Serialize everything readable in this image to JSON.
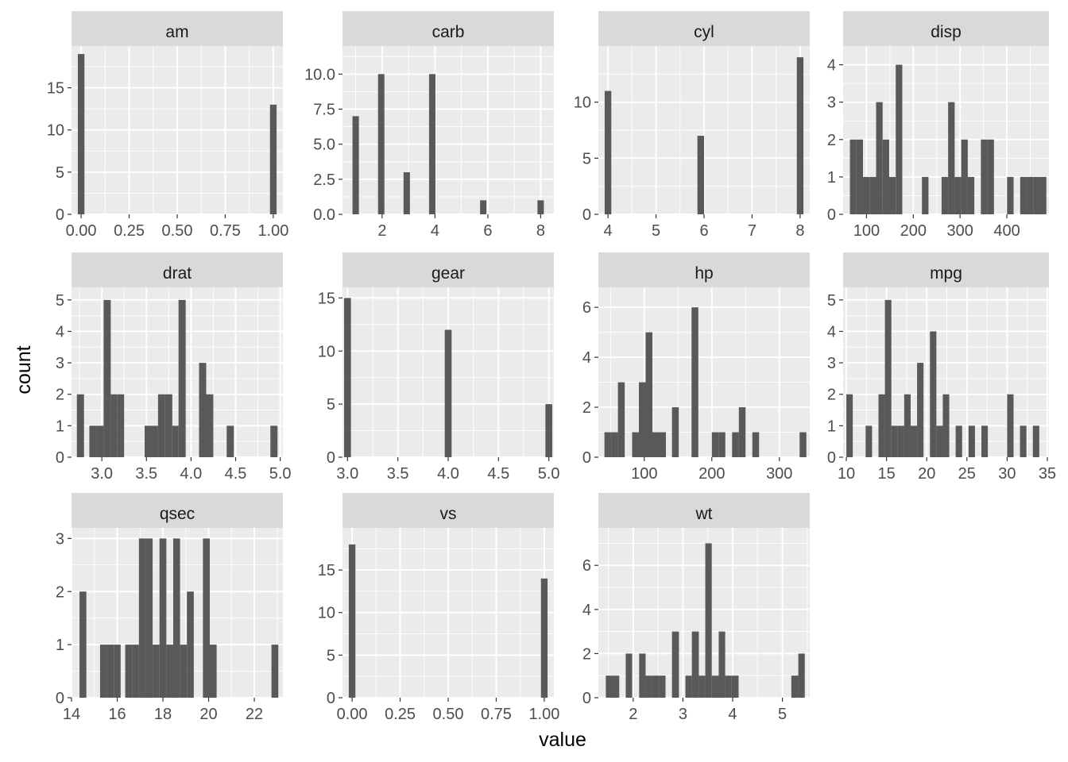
{
  "chart_data": {
    "type": "bar",
    "xlabel": "value",
    "ylabel": "count",
    "colors": {
      "panel_bg": "#ebebeb",
      "grid": "#ffffff",
      "bar": "#595959",
      "strip_bg": "#d9d9d9",
      "strip_text": "#1a1a1a",
      "tick_text": "#4d4d4d",
      "tick_mark": "#333333"
    },
    "panels": [
      {
        "name": "am",
        "xlim": [
          -0.05,
          1.05
        ],
        "ylim": [
          0,
          19.95
        ],
        "xticks": [
          0,
          0.25,
          0.5,
          0.75,
          1
        ],
        "xtick_labels": [
          "0.00",
          "0.25",
          "0.50",
          "0.75",
          "1.00"
        ],
        "yticks": [
          0,
          5,
          10,
          15
        ],
        "ytick_labels": [
          "0",
          "5",
          "10",
          "15"
        ],
        "bins": [
          {
            "x0": -0.0172,
            "x1": 0.0172,
            "count": 19
          },
          {
            "x0": 0.9828,
            "x1": 1.0172,
            "count": 13
          }
        ]
      },
      {
        "name": "carb",
        "xlim": [
          0.5,
          8.5
        ],
        "ylim": [
          0,
          12.0
        ],
        "xticks": [
          2,
          4,
          6,
          8
        ],
        "xtick_labels": [
          "2",
          "4",
          "6",
          "8"
        ],
        "yticks": [
          0,
          2.5,
          5,
          7.5,
          10
        ],
        "ytick_labels": [
          "0.0",
          "2.5",
          "5.0",
          "7.5",
          "10.0"
        ],
        "bins": [
          {
            "x0": 0.879,
            "x1": 1.121,
            "count": 7
          },
          {
            "x0": 1.845,
            "x1": 2.086,
            "count": 10
          },
          {
            "x0": 2.81,
            "x1": 3.052,
            "count": 3
          },
          {
            "x0": 3.776,
            "x1": 4.017,
            "count": 10
          },
          {
            "x0": 5.707,
            "x1": 5.948,
            "count": 1
          },
          {
            "x0": 7.879,
            "x1": 8.121,
            "count": 1
          }
        ]
      },
      {
        "name": "cyl",
        "xlim": [
          3.8,
          8.2
        ],
        "ylim": [
          0,
          15.0
        ],
        "xticks": [
          4,
          5,
          6,
          7,
          8
        ],
        "xtick_labels": [
          "4",
          "5",
          "6",
          "7",
          "8"
        ],
        "yticks": [
          0,
          5,
          10
        ],
        "ytick_labels": [
          "0",
          "5",
          "10"
        ],
        "bins": [
          {
            "x0": 3.931,
            "x1": 4.069,
            "count": 11
          },
          {
            "x0": 5.862,
            "x1": 6.0,
            "count": 7
          },
          {
            "x0": 7.931,
            "x1": 8.069,
            "count": 14
          }
        ]
      },
      {
        "name": "disp",
        "xlim": [
          50,
          490
        ],
        "ylim": [
          0,
          4.5
        ],
        "xticks": [
          100,
          200,
          300,
          400
        ],
        "xtick_labels": [
          "100",
          "200",
          "300",
          "400"
        ],
        "yticks": [
          0,
          1,
          2,
          3,
          4
        ],
        "ytick_labels": [
          "0",
          "1",
          "2",
          "3",
          "4"
        ],
        "bins": [
          {
            "x0": 64.5,
            "x1": 78.5,
            "count": 2
          },
          {
            "x0": 78.5,
            "x1": 92.5,
            "count": 2
          },
          {
            "x0": 92.5,
            "x1": 106.5,
            "count": 1
          },
          {
            "x0": 106.5,
            "x1": 120.5,
            "count": 1
          },
          {
            "x0": 120.5,
            "x1": 134.5,
            "count": 3
          },
          {
            "x0": 134.5,
            "x1": 148.5,
            "count": 2
          },
          {
            "x0": 148.5,
            "x1": 162.5,
            "count": 1
          },
          {
            "x0": 162.5,
            "x1": 176.5,
            "count": 4
          },
          {
            "x0": 218.5,
            "x1": 232.5,
            "count": 1
          },
          {
            "x0": 260.5,
            "x1": 274.5,
            "count": 1
          },
          {
            "x0": 274.5,
            "x1": 288.5,
            "count": 3
          },
          {
            "x0": 288.5,
            "x1": 302.5,
            "count": 1
          },
          {
            "x0": 302.5,
            "x1": 316.5,
            "count": 2
          },
          {
            "x0": 316.5,
            "x1": 330.5,
            "count": 1
          },
          {
            "x0": 344.5,
            "x1": 358.5,
            "count": 2
          },
          {
            "x0": 358.5,
            "x1": 372.5,
            "count": 2
          },
          {
            "x0": 400.5,
            "x1": 414.5,
            "count": 1
          },
          {
            "x0": 428.5,
            "x1": 442.5,
            "count": 1
          },
          {
            "x0": 442.5,
            "x1": 456.5,
            "count": 1
          },
          {
            "x0": 456.5,
            "x1": 470.5,
            "count": 1
          },
          {
            "x0": 470.5,
            "x1": 484.5,
            "count": 1
          }
        ]
      },
      {
        "name": "drat",
        "xlim": [
          2.66,
          5.03
        ],
        "ylim": [
          0,
          5.4
        ],
        "xticks": [
          3.0,
          3.5,
          4.0,
          4.5,
          5.0
        ],
        "xtick_labels": [
          "3.0",
          "3.5",
          "4.0",
          "4.5",
          "5.0"
        ],
        "yticks": [
          0,
          1,
          2,
          3,
          4,
          5
        ],
        "ytick_labels": [
          "0",
          "1",
          "2",
          "3",
          "4",
          "5"
        ],
        "bins": [
          {
            "x0": 2.72,
            "x1": 2.8,
            "count": 2
          },
          {
            "x0": 2.86,
            "x1": 2.94,
            "count": 1
          },
          {
            "x0": 2.94,
            "x1": 3.02,
            "count": 1
          },
          {
            "x0": 3.02,
            "x1": 3.1,
            "count": 5
          },
          {
            "x0": 3.1,
            "x1": 3.17,
            "count": 2
          },
          {
            "x0": 3.17,
            "x1": 3.25,
            "count": 2
          },
          {
            "x0": 3.48,
            "x1": 3.56,
            "count": 1
          },
          {
            "x0": 3.56,
            "x1": 3.63,
            "count": 1
          },
          {
            "x0": 3.63,
            "x1": 3.71,
            "count": 2
          },
          {
            "x0": 3.71,
            "x1": 3.79,
            "count": 2
          },
          {
            "x0": 3.79,
            "x1": 3.86,
            "count": 1
          },
          {
            "x0": 3.86,
            "x1": 3.94,
            "count": 5
          },
          {
            "x0": 4.09,
            "x1": 4.17,
            "count": 3
          },
          {
            "x0": 4.17,
            "x1": 4.25,
            "count": 2
          },
          {
            "x0": 4.4,
            "x1": 4.48,
            "count": 1
          },
          {
            "x0": 4.89,
            "x1": 4.97,
            "count": 1
          }
        ]
      },
      {
        "name": "gear",
        "xlim": [
          2.95,
          5.05
        ],
        "ylim": [
          0,
          16.0
        ],
        "xticks": [
          3.0,
          3.5,
          4.0,
          4.5,
          5.0
        ],
        "xtick_labels": [
          "3.0",
          "3.5",
          "4.0",
          "4.5",
          "5.0"
        ],
        "yticks": [
          0,
          5,
          10,
          15
        ],
        "ytick_labels": [
          "0",
          "5",
          "10",
          "15"
        ],
        "bins": [
          {
            "x0": 2.966,
            "x1": 3.034,
            "count": 15
          },
          {
            "x0": 3.966,
            "x1": 4.034,
            "count": 12
          },
          {
            "x0": 4.966,
            "x1": 5.034,
            "count": 5
          }
        ]
      },
      {
        "name": "hp",
        "xlim": [
          32,
          345
        ],
        "ylim": [
          0,
          6.8
        ],
        "xticks": [
          100,
          200,
          300
        ],
        "xtick_labels": [
          "100",
          "200",
          "300"
        ],
        "yticks": [
          0,
          2,
          4,
          6
        ],
        "ytick_labels": [
          "0",
          "2",
          "4",
          "6"
        ],
        "bins": [
          {
            "x0": 41,
            "x1": 51,
            "count": 1
          },
          {
            "x0": 51,
            "x1": 61,
            "count": 1
          },
          {
            "x0": 61,
            "x1": 71,
            "count": 3
          },
          {
            "x0": 82,
            "x1": 92,
            "count": 1
          },
          {
            "x0": 92,
            "x1": 102,
            "count": 3
          },
          {
            "x0": 102,
            "x1": 112,
            "count": 5
          },
          {
            "x0": 112,
            "x1": 122,
            "count": 1
          },
          {
            "x0": 122,
            "x1": 132,
            "count": 1
          },
          {
            "x0": 141,
            "x1": 151,
            "count": 2
          },
          {
            "x0": 170,
            "x1": 180,
            "count": 6
          },
          {
            "x0": 200,
            "x1": 210,
            "count": 1
          },
          {
            "x0": 210,
            "x1": 220,
            "count": 1
          },
          {
            "x0": 230,
            "x1": 240,
            "count": 1
          },
          {
            "x0": 240,
            "x1": 250,
            "count": 2
          },
          {
            "x0": 260,
            "x1": 270,
            "count": 1
          },
          {
            "x0": 330,
            "x1": 340,
            "count": 1
          }
        ]
      },
      {
        "name": "mpg",
        "xlim": [
          9.6,
          35.2
        ],
        "ylim": [
          0,
          5.4
        ],
        "xticks": [
          10,
          15,
          20,
          25,
          30,
          35
        ],
        "xtick_labels": [
          "10",
          "15",
          "20",
          "25",
          "30",
          "35"
        ],
        "yticks": [
          0,
          1,
          2,
          3,
          4,
          5
        ],
        "ytick_labels": [
          "0",
          "1",
          "2",
          "3",
          "4",
          "5"
        ],
        "bins": [
          {
            "x0": 10.0,
            "x1": 10.8,
            "count": 2
          },
          {
            "x0": 12.4,
            "x1": 13.2,
            "count": 1
          },
          {
            "x0": 14.0,
            "x1": 14.8,
            "count": 2
          },
          {
            "x0": 14.8,
            "x1": 15.6,
            "count": 5
          },
          {
            "x0": 15.6,
            "x1": 16.4,
            "count": 1
          },
          {
            "x0": 16.4,
            "x1": 17.2,
            "count": 1
          },
          {
            "x0": 17.2,
            "x1": 18.0,
            "count": 2
          },
          {
            "x0": 18.0,
            "x1": 18.8,
            "count": 1
          },
          {
            "x0": 18.8,
            "x1": 19.6,
            "count": 3
          },
          {
            "x0": 20.4,
            "x1": 21.2,
            "count": 4
          },
          {
            "x0": 21.2,
            "x1": 22.0,
            "count": 1
          },
          {
            "x0": 22.0,
            "x1": 22.8,
            "count": 2
          },
          {
            "x0": 23.6,
            "x1": 24.4,
            "count": 1
          },
          {
            "x0": 25.2,
            "x1": 26.0,
            "count": 1
          },
          {
            "x0": 26.8,
            "x1": 27.6,
            "count": 1
          },
          {
            "x0": 30.0,
            "x1": 30.8,
            "count": 2
          },
          {
            "x0": 31.6,
            "x1": 32.4,
            "count": 1
          },
          {
            "x0": 33.2,
            "x1": 34.0,
            "count": 1
          }
        ]
      },
      {
        "name": "qsec",
        "xlim": [
          14.0,
          23.25
        ],
        "ylim": [
          0,
          3.2
        ],
        "xticks": [
          14,
          16,
          18,
          20,
          22
        ],
        "xtick_labels": [
          "14",
          "16",
          "18",
          "20",
          "22"
        ],
        "yticks": [
          0,
          1,
          2,
          3
        ],
        "ytick_labels": [
          "0",
          "1",
          "2",
          "3"
        ],
        "bins": [
          {
            "x0": 14.35,
            "x1": 14.65,
            "count": 2
          },
          {
            "x0": 15.25,
            "x1": 15.55,
            "count": 1
          },
          {
            "x0": 15.55,
            "x1": 15.85,
            "count": 1
          },
          {
            "x0": 15.85,
            "x1": 16.15,
            "count": 1
          },
          {
            "x0": 16.35,
            "x1": 16.65,
            "count": 1
          },
          {
            "x0": 16.65,
            "x1": 16.95,
            "count": 1
          },
          {
            "x0": 16.95,
            "x1": 17.25,
            "count": 3
          },
          {
            "x0": 17.25,
            "x1": 17.55,
            "count": 3
          },
          {
            "x0": 17.55,
            "x1": 17.85,
            "count": 1
          },
          {
            "x0": 17.85,
            "x1": 18.15,
            "count": 3
          },
          {
            "x0": 18.15,
            "x1": 18.45,
            "count": 1
          },
          {
            "x0": 18.45,
            "x1": 18.75,
            "count": 3
          },
          {
            "x0": 18.75,
            "x1": 19.05,
            "count": 1
          },
          {
            "x0": 19.05,
            "x1": 19.35,
            "count": 2
          },
          {
            "x0": 19.75,
            "x1": 20.05,
            "count": 3
          },
          {
            "x0": 20.05,
            "x1": 20.35,
            "count": 1
          },
          {
            "x0": 22.75,
            "x1": 23.05,
            "count": 1
          }
        ]
      },
      {
        "name": "vs",
        "xlim": [
          -0.05,
          1.05
        ],
        "ylim": [
          0,
          19.95
        ],
        "xticks": [
          0,
          0.25,
          0.5,
          0.75,
          1
        ],
        "xtick_labels": [
          "0.00",
          "0.25",
          "0.50",
          "0.75",
          "1.00"
        ],
        "yticks": [
          0,
          5,
          10,
          15
        ],
        "ytick_labels": [
          "0",
          "5",
          "10",
          "15"
        ],
        "bins": [
          {
            "x0": -0.0172,
            "x1": 0.0172,
            "count": 18
          },
          {
            "x0": 0.9828,
            "x1": 1.0172,
            "count": 14
          }
        ]
      },
      {
        "name": "wt",
        "xlim": [
          1.3,
          5.55
        ],
        "ylim": [
          0,
          7.7
        ],
        "xticks": [
          2,
          3,
          4,
          5
        ],
        "xtick_labels": [
          "2",
          "3",
          "4",
          "5"
        ],
        "yticks": [
          0,
          2,
          4,
          6
        ],
        "ytick_labels": [
          "0",
          "2",
          "4",
          "6"
        ],
        "bins": [
          {
            "x0": 1.45,
            "x1": 1.58,
            "count": 1
          },
          {
            "x0": 1.58,
            "x1": 1.72,
            "count": 1
          },
          {
            "x0": 1.85,
            "x1": 1.98,
            "count": 2
          },
          {
            "x0": 2.12,
            "x1": 2.25,
            "count": 2
          },
          {
            "x0": 2.25,
            "x1": 2.38,
            "count": 1
          },
          {
            "x0": 2.38,
            "x1": 2.52,
            "count": 1
          },
          {
            "x0": 2.52,
            "x1": 2.65,
            "count": 1
          },
          {
            "x0": 2.78,
            "x1": 2.92,
            "count": 3
          },
          {
            "x0": 3.05,
            "x1": 3.18,
            "count": 1
          },
          {
            "x0": 3.18,
            "x1": 3.32,
            "count": 3
          },
          {
            "x0": 3.32,
            "x1": 3.45,
            "count": 1
          },
          {
            "x0": 3.45,
            "x1": 3.58,
            "count": 7
          },
          {
            "x0": 3.58,
            "x1": 3.72,
            "count": 1
          },
          {
            "x0": 3.72,
            "x1": 3.85,
            "count": 3
          },
          {
            "x0": 3.85,
            "x1": 3.98,
            "count": 1
          },
          {
            "x0": 3.98,
            "x1": 4.12,
            "count": 1
          },
          {
            "x0": 5.18,
            "x1": 5.32,
            "count": 1
          },
          {
            "x0": 5.32,
            "x1": 5.45,
            "count": 2
          }
        ]
      }
    ]
  }
}
